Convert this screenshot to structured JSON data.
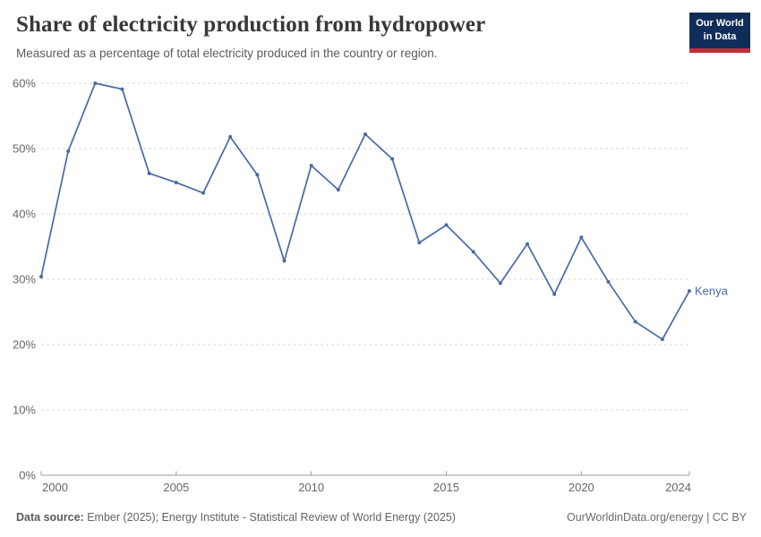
{
  "header": {
    "title": "Share of electricity production from hydropower",
    "subtitle": "Measured as a percentage of total electricity produced in the country or region.",
    "logo": {
      "line1": "Our World",
      "line2": "in Data"
    }
  },
  "chart_data": {
    "type": "line",
    "title": "Share of electricity production from hydropower",
    "x": [
      2000,
      2001,
      2002,
      2003,
      2004,
      2005,
      2006,
      2007,
      2008,
      2009,
      2010,
      2011,
      2012,
      2013,
      2014,
      2015,
      2016,
      2017,
      2018,
      2019,
      2020,
      2021,
      2022,
      2023,
      2024
    ],
    "series": [
      {
        "name": "Kenya",
        "values": [
          30.4,
          49.6,
          60.0,
          59.1,
          46.2,
          44.8,
          43.2,
          51.8,
          46.0,
          32.8,
          47.4,
          43.7,
          52.2,
          48.4,
          35.6,
          38.3,
          34.2,
          29.4,
          35.4,
          27.7,
          36.4,
          29.6,
          23.5,
          20.8,
          28.2
        ]
      }
    ],
    "xlabel": "",
    "ylabel": "",
    "xlim": [
      2000,
      2024
    ],
    "ylim": [
      0,
      60
    ],
    "xticks": [
      2000,
      2005,
      2010,
      2015,
      2020,
      2024
    ],
    "yticks": [
      0,
      10,
      20,
      30,
      40,
      50,
      60
    ],
    "ytick_suffix": "%",
    "grid": "horizontal-dashed",
    "legend": "line-end-label"
  },
  "footer": {
    "datasource_label": "Data source:",
    "datasource_text": " Ember (2025); Energy Institute - Statistical Review of World Energy (2025)",
    "credit": "OurWorldinData.org/energy | CC BY"
  },
  "colors": {
    "line": "#4a68a5",
    "grid": "#dadada",
    "axis": "#9c9c9c",
    "tick_label": "#666666",
    "title": "#383838",
    "subtitle": "#5b5b5b",
    "footer": "#636363",
    "logo_bg": "#102d59",
    "logo_accent": "#bf3036"
  }
}
